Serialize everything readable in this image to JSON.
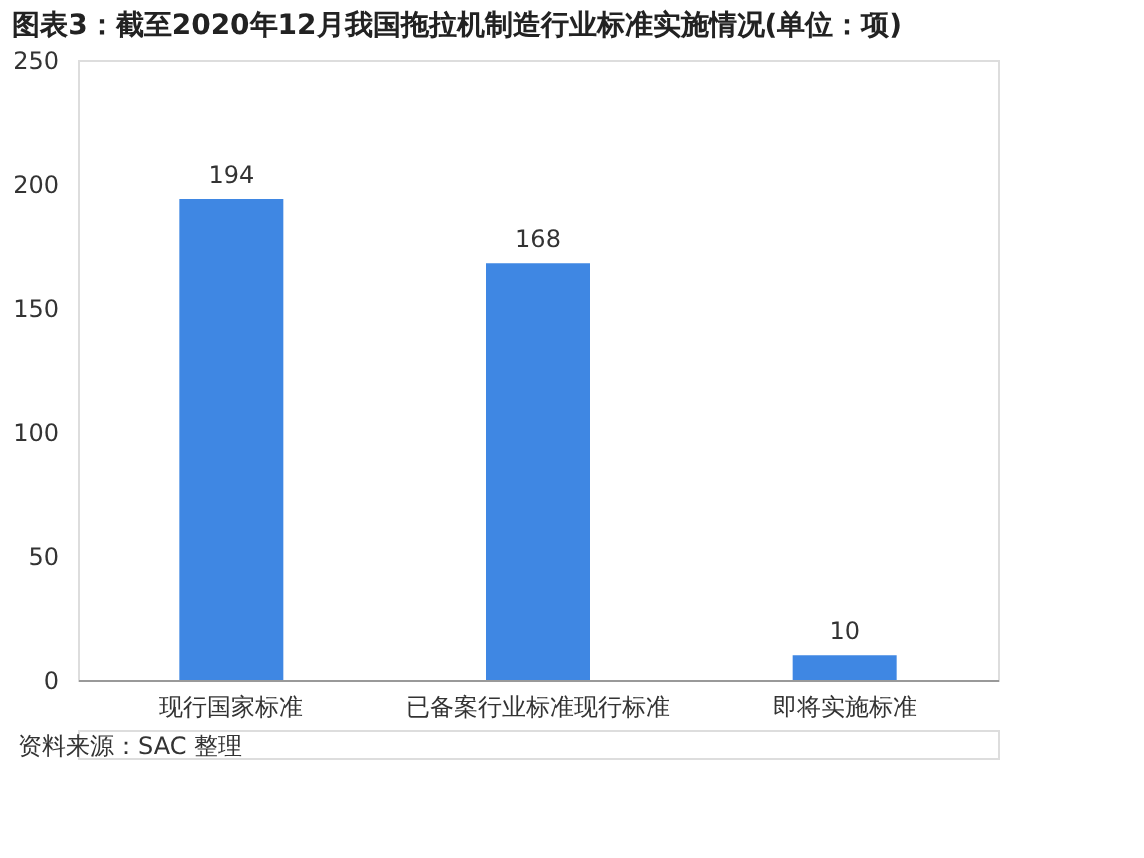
{
  "chart_data": {
    "type": "bar",
    "title": "图表3：截至2020年12月我国拖拉机制造行业标准实施情况(单位：项)",
    "categories": [
      "现行国家标准",
      "已备案行业标准现行标准",
      "即将实施标准"
    ],
    "values": [
      194,
      168,
      10
    ],
    "color": "#3f87e3",
    "ylim": [
      0,
      250
    ],
    "yticks": [
      0,
      50,
      100,
      150,
      200,
      250
    ],
    "grid": false,
    "data_labels": true,
    "annotations": [
      "资料来源：SAC 整理"
    ]
  }
}
